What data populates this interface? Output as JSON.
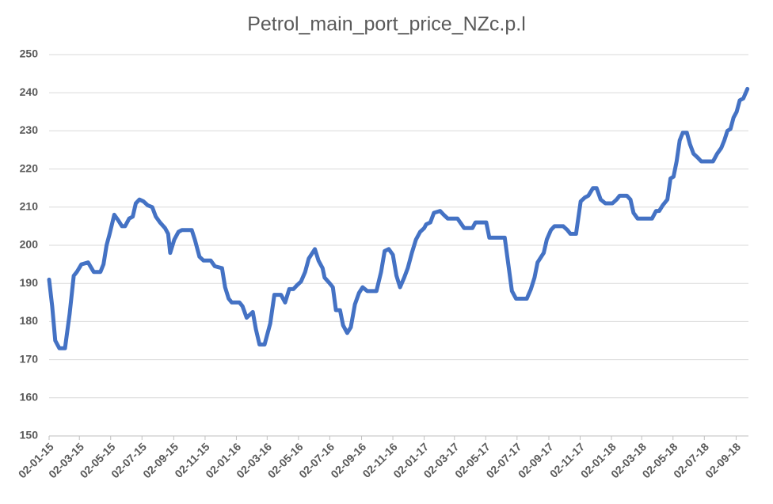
{
  "chart_data": {
    "type": "line",
    "title": "Petrol_main_port_price_NZc.p.l",
    "x": [
      "02-01-15",
      "08-01-15",
      "14-01-15",
      "22-01-15",
      "02-02-15",
      "11-02-15",
      "19-02-15",
      "25-02-15",
      "06-03-15",
      "19-03-15",
      "30-03-15",
      "12-04-15",
      "18-04-15",
      "24-04-15",
      "30-04-15",
      "09-05-15",
      "17-05-15",
      "24-05-15",
      "30-05-15",
      "07-06-15",
      "14-06-15",
      "20-06-15",
      "27-06-15",
      "05-07-15",
      "13-07-15",
      "22-07-15",
      "29-07-15",
      "06-08-15",
      "16-08-15",
      "22-08-15",
      "26-08-15",
      "03-09-15",
      "11-09-15",
      "18-09-15",
      "07-10-15",
      "13-10-15",
      "22-10-15",
      "30-10-15",
      "13-11-15",
      "21-11-15",
      "05-12-15",
      "11-12-15",
      "18-12-15",
      "24-12-15",
      "08-01-16",
      "14-01-16",
      "22-01-16",
      "03-02-16",
      "09-02-16",
      "16-02-16",
      "26-02-16",
      "08-03-16",
      "16-03-16",
      "29-03-16",
      "06-04-16",
      "14-04-16",
      "22-04-16",
      "29-04-16",
      "07-05-16",
      "15-05-16",
      "22-05-16",
      "03-06-16",
      "10-06-16",
      "18-06-16",
      "22-06-16",
      "02-07-16",
      "08-07-16",
      "14-07-16",
      "22-07-16",
      "28-07-16",
      "05-08-16",
      "12-08-16",
      "20-08-16",
      "28-08-16",
      "04-09-16",
      "13-09-16",
      "01-10-16",
      "10-10-16",
      "17-10-16",
      "25-10-16",
      "02-11-16",
      "09-11-16",
      "16-11-16",
      "24-11-16",
      "01-12-16",
      "09-12-16",
      "17-12-16",
      "25-12-16",
      "02-01-17",
      "06-01-17",
      "14-01-17",
      "21-01-17",
      "02-02-17",
      "09-02-17",
      "17-02-17",
      "08-03-17",
      "21-03-17",
      "06-04-17",
      "12-04-17",
      "03-05-17",
      "09-05-17",
      "08-06-17",
      "14-06-17",
      "22-06-17",
      "30-06-17",
      "21-07-17",
      "29-07-17",
      "05-08-17",
      "11-08-17",
      "23-08-17",
      "29-08-17",
      "06-09-17",
      "13-09-17",
      "30-09-17",
      "08-10-17",
      "14-10-17",
      "25-10-17",
      "03-11-17",
      "11-11-17",
      "18-11-17",
      "27-11-17",
      "04-12-17",
      "12-12-17",
      "21-12-17",
      "04-01-18",
      "12-01-18",
      "18-01-18",
      "01-02-18",
      "08-02-18",
      "14-02-18",
      "22-02-18",
      "22-03-18",
      "30-03-18",
      "05-04-18",
      "12-04-18",
      "21-04-18",
      "27-04-18",
      "03-05-18",
      "09-05-18",
      "15-05-18",
      "21-05-18",
      "29-05-18",
      "04-06-18",
      "11-06-18",
      "19-06-18",
      "26-06-18",
      "19-07-18",
      "27-07-18",
      "04-08-18",
      "10-08-18",
      "16-08-18",
      "22-08-18",
      "28-08-18",
      "03-09-18",
      "09-09-18",
      "16-09-18",
      "24-09-18"
    ],
    "series": [
      {
        "name": "Petrol_main_port_price_NZc.p.l",
        "color": "#4472c4",
        "values": [
          191,
          184,
          175,
          173,
          173,
          182,
          192,
          193,
          195,
          195.5,
          193,
          193,
          195,
          200,
          203,
          208,
          206.5,
          205,
          205,
          207,
          207.5,
          211,
          212,
          211.5,
          210.5,
          210,
          207.5,
          206,
          204.5,
          203,
          198,
          201.5,
          203.5,
          204,
          204,
          201.5,
          197,
          196,
          196,
          194.5,
          194,
          189,
          186,
          185,
          185,
          184,
          181,
          182.5,
          178,
          174,
          174,
          179.5,
          187,
          187,
          185,
          188.5,
          188.5,
          189.5,
          190.5,
          193,
          196.5,
          199,
          196,
          194,
          191.5,
          190,
          189,
          183,
          183,
          179,
          177,
          178.5,
          184.5,
          187.5,
          189,
          188,
          188,
          193,
          198.5,
          199,
          197.5,
          192,
          189,
          191.5,
          194,
          198,
          201.5,
          203.5,
          204.5,
          205.5,
          206,
          208.5,
          209,
          208,
          207,
          207,
          204.5,
          204.5,
          206,
          206,
          202,
          202,
          196,
          188,
          186,
          186,
          188.5,
          191.5,
          195.5,
          198,
          201.5,
          204,
          205,
          205,
          204,
          203,
          203,
          211.5,
          212.5,
          213,
          215,
          215,
          212,
          211,
          211,
          212,
          213,
          213,
          212,
          208.5,
          207,
          207,
          209,
          209,
          210.5,
          212,
          217.5,
          218,
          222,
          227.5,
          229.5,
          229.5,
          226.5,
          224,
          223,
          222,
          222,
          224,
          225.5,
          227.5,
          230,
          230.5,
          233.5,
          235,
          238,
          238.5,
          241
        ]
      }
    ],
    "xlim": [
      "02-01-15",
      "26-09-18"
    ],
    "xticks": [
      "02-01-15",
      "02-03-15",
      "02-05-15",
      "02-07-15",
      "02-09-15",
      "02-11-15",
      "02-01-16",
      "02-03-16",
      "02-05-16",
      "02-07-16",
      "02-09-16",
      "02-11-16",
      "02-01-17",
      "02-03-17",
      "02-05-17",
      "02-07-17",
      "02-09-17",
      "02-11-17",
      "02-01-18",
      "02-03-18",
      "02-05-18",
      "02-07-18",
      "02-09-18"
    ],
    "ylim": [
      150,
      250
    ],
    "yticks": [
      150,
      160,
      170,
      180,
      190,
      200,
      210,
      220,
      230,
      240,
      250
    ],
    "grid": true
  }
}
